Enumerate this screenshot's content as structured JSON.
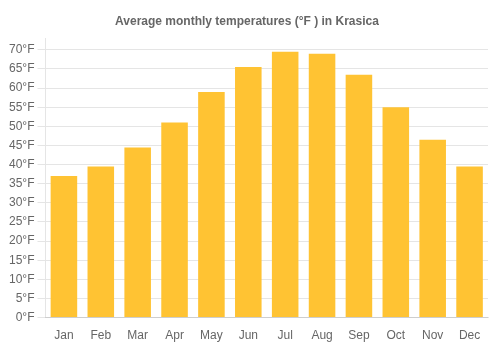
{
  "chart_data": {
    "type": "bar",
    "title": "Average monthly temperatures (°F ) in Krasica",
    "categories": [
      "Jan",
      "Feb",
      "Mar",
      "Apr",
      "May",
      "Jun",
      "Jul",
      "Aug",
      "Sep",
      "Oct",
      "Nov",
      "Dec"
    ],
    "values": [
      37,
      39.5,
      44.5,
      51,
      59,
      65.5,
      69.5,
      69,
      63.5,
      55,
      46.5,
      39.5
    ],
    "color": "#FFC333",
    "ylim": [
      0,
      73
    ],
    "yticks": [
      {
        "value": 0,
        "label": "0°F"
      },
      {
        "value": 5,
        "label": "5°F"
      },
      {
        "value": 10,
        "label": "10°F"
      },
      {
        "value": 15,
        "label": "15°F"
      },
      {
        "value": 20,
        "label": "20°F"
      },
      {
        "value": 25,
        "label": "25°F"
      },
      {
        "value": 30,
        "label": "30°F"
      },
      {
        "value": 35,
        "label": "35°F"
      },
      {
        "value": 40,
        "label": "40°F"
      },
      {
        "value": 45,
        "label": "45°F"
      },
      {
        "value": 50,
        "label": "50°F"
      },
      {
        "value": 55,
        "label": "55°F"
      },
      {
        "value": 60,
        "label": "60°F"
      },
      {
        "value": 65,
        "label": "65°F"
      },
      {
        "value": 70,
        "label": "70°F"
      }
    ],
    "grid": true
  }
}
